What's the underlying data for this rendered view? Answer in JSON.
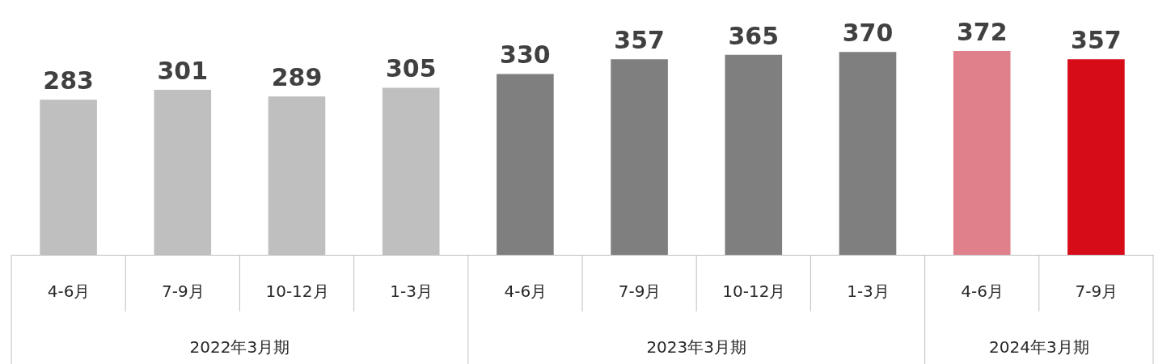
{
  "chart_data": {
    "type": "bar",
    "data_labels": true,
    "annotations": [
      "2022年3月期",
      "2023年3月期",
      "2024年3月期"
    ],
    "categories": [
      "4-6月",
      "7-9月",
      "10-12月",
      "1-3月",
      "4-6月",
      "7-9月",
      "10-12月",
      "1-3月",
      "4-6月",
      "7-9月"
    ],
    "series": [
      {
        "color": "#bfbfbf",
        "values": [
          283,
          301,
          289,
          305,
          null,
          null,
          null,
          null,
          null,
          null
        ]
      },
      {
        "color": "#7f7f7f",
        "values": [
          null,
          null,
          null,
          null,
          330,
          357,
          365,
          370,
          null,
          null
        ]
      },
      {
        "colors": [
          null,
          null,
          null,
          null,
          null,
          null,
          null,
          null,
          "#e0808a",
          "#d70c19"
        ],
        "values": [
          null,
          null,
          null,
          null,
          null,
          null,
          null,
          null,
          372,
          357
        ]
      }
    ]
  }
}
